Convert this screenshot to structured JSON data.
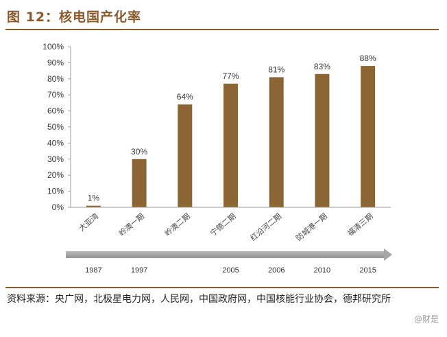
{
  "header": {
    "title": "图 12：核电国产化率"
  },
  "source": {
    "text": "资料来源：央广网，北极星电力网，人民网，中国政府网，中国核能行业协会，德邦研究所"
  },
  "watermark": {
    "text": "@财是"
  },
  "colors": {
    "bar": "#8B6534",
    "accent": "#8B5A2B",
    "timeline": "#A6A6A6",
    "axis": "#9E9E9E"
  },
  "chart_data": {
    "type": "bar",
    "title": "",
    "xlabel": "",
    "ylabel": "",
    "ylim": [
      0,
      100
    ],
    "y_ticks": [
      "0%",
      "10%",
      "20%",
      "30%",
      "40%",
      "50%",
      "60%",
      "70%",
      "80%",
      "90%",
      "100%"
    ],
    "grid": false,
    "categories": [
      "大亚湾",
      "岭澳一期",
      "岭澳二期",
      "宁德二期",
      "红沿河二期",
      "防城港一期",
      "福清三期"
    ],
    "values": [
      1,
      30,
      64,
      77,
      81,
      83,
      88
    ],
    "data_labels": [
      "1%",
      "30%",
      "64%",
      "77%",
      "81%",
      "83%",
      "88%"
    ],
    "timeline_years": [
      "1987",
      "1997",
      "",
      "2005",
      "2006",
      "2010",
      "2015"
    ]
  }
}
